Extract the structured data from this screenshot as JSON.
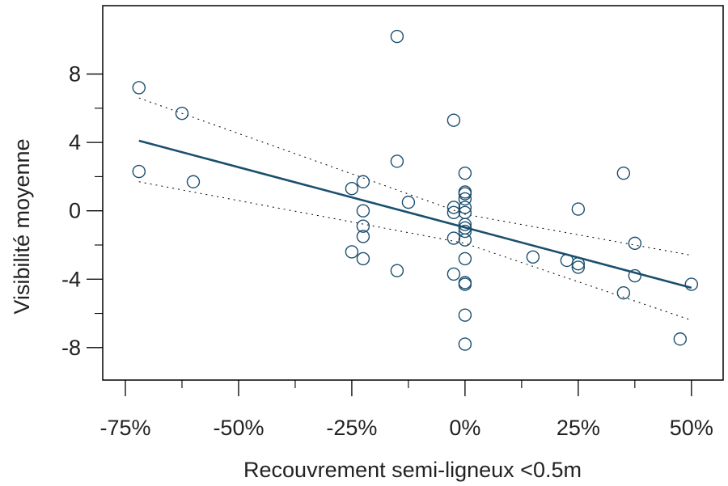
{
  "chart_data": {
    "type": "scatter",
    "xlabel": "Recouvrement semi-ligneux <0.5m",
    "ylabel": "Visibilité moyenne",
    "x_ticks": [
      -0.75,
      -0.5,
      -0.25,
      0,
      0.25,
      0.5
    ],
    "x_tick_labels": [
      "-75%",
      "-50%",
      "-25%",
      "0%",
      "25%",
      "50%"
    ],
    "y_ticks": [
      -8,
      -4,
      0,
      4,
      8
    ],
    "y_tick_labels": [
      "-8",
      "-4",
      "0",
      "4",
      "8"
    ],
    "xlim": [
      -0.8,
      0.57
    ],
    "ylim": [
      -9.9,
      12.0
    ],
    "grid": false,
    "legend": "none",
    "colors": {
      "points": "#1b4f6e",
      "fit": "#1b4f6e",
      "ci": "#000000"
    },
    "points": [
      {
        "x": -0.72,
        "y": 7.2
      },
      {
        "x": -0.72,
        "y": 2.3
      },
      {
        "x": -0.625,
        "y": 5.7
      },
      {
        "x": -0.6,
        "y": 1.7
      },
      {
        "x": -0.25,
        "y": 1.3
      },
      {
        "x": -0.25,
        "y": -2.4
      },
      {
        "x": -0.225,
        "y": 1.7
      },
      {
        "x": -0.225,
        "y": 0.0
      },
      {
        "x": -0.225,
        "y": -0.9
      },
      {
        "x": -0.225,
        "y": -1.5
      },
      {
        "x": -0.225,
        "y": -2.8
      },
      {
        "x": -0.15,
        "y": 10.2
      },
      {
        "x": -0.15,
        "y": 2.9
      },
      {
        "x": -0.15,
        "y": -3.5
      },
      {
        "x": -0.125,
        "y": 0.5
      },
      {
        "x": -0.025,
        "y": 5.3
      },
      {
        "x": -0.025,
        "y": 0.2
      },
      {
        "x": -0.025,
        "y": -0.1
      },
      {
        "x": -0.025,
        "y": -1.6
      },
      {
        "x": -0.025,
        "y": -3.7
      },
      {
        "x": 0.0,
        "y": 2.2
      },
      {
        "x": 0.0,
        "y": 1.1
      },
      {
        "x": 0.0,
        "y": 1.0
      },
      {
        "x": 0.0,
        "y": 0.7
      },
      {
        "x": 0.0,
        "y": 0.2
      },
      {
        "x": 0.0,
        "y": -0.1
      },
      {
        "x": 0.0,
        "y": -0.8
      },
      {
        "x": 0.0,
        "y": -1.0
      },
      {
        "x": 0.0,
        "y": -1.2
      },
      {
        "x": 0.0,
        "y": -1.7
      },
      {
        "x": 0.0,
        "y": -2.8
      },
      {
        "x": 0.0,
        "y": -4.2
      },
      {
        "x": 0.0,
        "y": -4.3
      },
      {
        "x": 0.0,
        "y": -6.1
      },
      {
        "x": 0.0,
        "y": -7.8
      },
      {
        "x": 0.15,
        "y": -2.7
      },
      {
        "x": 0.225,
        "y": -2.9
      },
      {
        "x": 0.25,
        "y": 0.1
      },
      {
        "x": 0.25,
        "y": -3.1
      },
      {
        "x": 0.25,
        "y": -3.3
      },
      {
        "x": 0.35,
        "y": 2.2
      },
      {
        "x": 0.35,
        "y": -4.8
      },
      {
        "x": 0.375,
        "y": -1.9
      },
      {
        "x": 0.375,
        "y": -3.8
      },
      {
        "x": 0.475,
        "y": -7.5
      },
      {
        "x": 0.5,
        "y": -4.3
      }
    ],
    "fit_line": [
      {
        "x": -0.72,
        "y": 4.1
      },
      {
        "x": 0.5,
        "y": -4.5
      }
    ],
    "ci_upper": [
      {
        "x": -0.72,
        "y": 6.6
      },
      {
        "x": 0.0,
        "y": -0.2
      },
      {
        "x": 0.5,
        "y": -2.6
      }
    ],
    "ci_lower": [
      {
        "x": -0.72,
        "y": 1.7
      },
      {
        "x": 0.0,
        "y": -1.9
      },
      {
        "x": 0.5,
        "y": -6.4
      }
    ]
  }
}
